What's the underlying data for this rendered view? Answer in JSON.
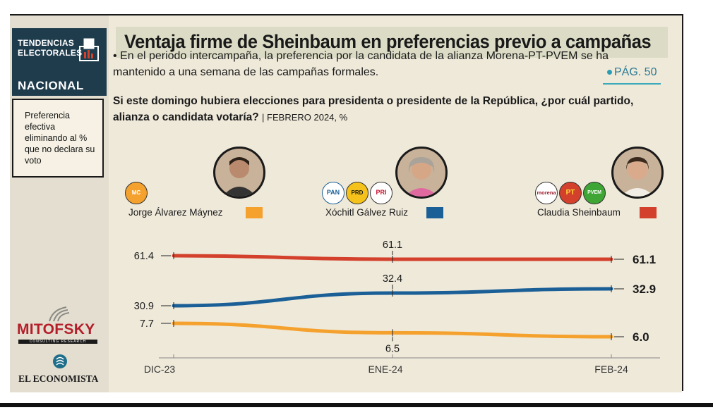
{
  "sidebar": {
    "badge_line1": "TENDENCIAS",
    "badge_line2": "ELECTORALES",
    "badge_line3": "NACIONAL",
    "description": "Preferencia efectiva eliminando al % que no declara su voto",
    "mitofsky": "MITOFSKY",
    "mitofsky_sub": "CONSULTING RESEARCH",
    "economista": "EL ECONOMISTA"
  },
  "header": {
    "title": "Ventaja firme de Sheinbaum en preferencias previo a campañas",
    "bullet": "• En el periodo intercampaña, la preferencia por la candidata de la alianza Morena-PT-PVEM se ha mantenido a una semana de las campañas formales.",
    "page_ref": "PÁG. 50"
  },
  "question": {
    "text": "Si este domingo hubiera elecciones para presidenta o presidente de la República, ¿por cuál partido, alianza o candidata votaría?",
    "date": "| FEBRERO 2024, %"
  },
  "parties": {
    "mc": "MC",
    "pan": "PAN",
    "prd": "PRD",
    "pri": "PRI",
    "morena": "morena",
    "pt": "PT",
    "pvem": "PVEM"
  },
  "colors": {
    "maynez": "#f5a12d",
    "xochitl": "#1b5f97",
    "sheinbaum": "#d3402b",
    "badge": "#1f3c4d",
    "accent": "#2a9db4"
  },
  "chart_data": {
    "type": "line",
    "x": [
      "DIC-23",
      "ENE-24",
      "FEB-24"
    ],
    "series": [
      {
        "name": "Jorge Álvarez Máynez",
        "values": [
          7.7,
          6.5,
          6.0
        ],
        "color": "#f5a12d"
      },
      {
        "name": "Xóchitl Gálvez Ruiz",
        "values": [
          30.9,
          32.4,
          32.9
        ],
        "color": "#1b5f97"
      },
      {
        "name": "Claudia Sheinbaum",
        "values": [
          61.4,
          61.1,
          61.1
        ],
        "color": "#d3402b"
      }
    ],
    "value_labels": {
      "maynez": [
        "7.7",
        "6.5",
        "6.0"
      ],
      "xochitl": [
        "30.9",
        "32.4",
        "32.9"
      ],
      "sheinbaum": [
        "61.4",
        "61.1",
        "61.1"
      ]
    },
    "legend_placement": "top",
    "grid": false
  }
}
